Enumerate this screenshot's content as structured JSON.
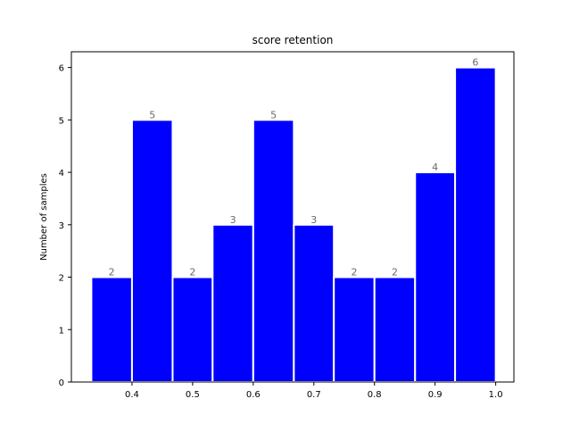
{
  "chart_data": {
    "type": "bar",
    "title": "score retention",
    "xlabel": "",
    "ylabel": "Number of samples",
    "bins": [
      {
        "start": 0.333,
        "end": 0.4,
        "count": 2
      },
      {
        "start": 0.4,
        "end": 0.467,
        "count": 5
      },
      {
        "start": 0.467,
        "end": 0.533,
        "count": 2
      },
      {
        "start": 0.533,
        "end": 0.6,
        "count": 3
      },
      {
        "start": 0.6,
        "end": 0.667,
        "count": 5
      },
      {
        "start": 0.667,
        "end": 0.733,
        "count": 3
      },
      {
        "start": 0.733,
        "end": 0.8,
        "count": 2
      },
      {
        "start": 0.8,
        "end": 0.867,
        "count": 2
      },
      {
        "start": 0.867,
        "end": 0.933,
        "count": 4
      },
      {
        "start": 0.933,
        "end": 1.0,
        "count": 6
      }
    ],
    "xlim": [
      0.3,
      1.03
    ],
    "ylim": [
      0,
      6.3
    ],
    "xticks": [
      0.4,
      0.5,
      0.6,
      0.7,
      0.8,
      0.9,
      1.0
    ],
    "xtick_labels": [
      "0.4",
      "0.5",
      "0.6",
      "0.7",
      "0.8",
      "0.9",
      "1.0"
    ],
    "yticks": [
      0,
      1,
      2,
      3,
      4,
      5,
      6
    ],
    "ytick_labels": [
      "0",
      "1",
      "2",
      "3",
      "4",
      "5",
      "6"
    ],
    "bar_color": "#0000ff",
    "bar_edge_color": "#ffffff",
    "label_color": "#6b6b6b",
    "grid": false,
    "legend": "none"
  }
}
